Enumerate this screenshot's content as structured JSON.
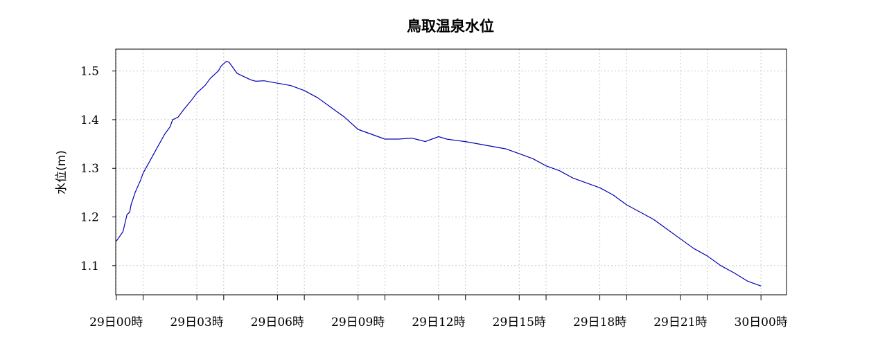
{
  "chart_data": {
    "type": "line",
    "title": "鳥取温泉水位",
    "xlabel": "",
    "ylabel": "水位(m)",
    "ylim": [
      1.04,
      1.545
    ],
    "xlim": [
      -0.02,
      24.95
    ],
    "y_ticks": [
      1.1,
      1.2,
      1.3,
      1.4,
      1.5
    ],
    "y_tick_labels": [
      "1.1",
      "1.2",
      "1.3",
      "1.4",
      "1.5"
    ],
    "x_tick_hours": [
      0,
      3,
      6,
      9,
      12,
      15,
      18,
      21,
      24
    ],
    "x_tick_labels": [
      "29日00時",
      "29日03時",
      "29日06時",
      "29日09時",
      "29日12時",
      "29日15時",
      "29日18時",
      "29日21時",
      "30日00時"
    ],
    "x_minor_tick_hours": [
      1,
      4,
      7,
      10,
      13,
      16,
      19,
      22
    ],
    "grid": true,
    "line_color": "#0000b4",
    "series": [
      {
        "x": [
          0,
          0.25,
          0.4,
          0.5,
          0.55,
          0.7,
          0.9,
          1.0,
          1.2,
          1.5,
          1.8,
          2.0,
          2.1,
          2.3,
          2.5,
          2.8,
          3.0,
          3.3,
          3.5,
          3.7,
          3.8,
          3.9,
          4.0,
          4.1,
          4.2,
          4.5,
          5.0,
          5.2,
          5.5,
          6.0,
          6.5,
          7.0,
          7.5,
          8.0,
          8.5,
          9.0,
          9.5,
          10.0,
          10.5,
          11.0,
          11.3,
          11.5,
          12.0,
          12.3,
          12.7,
          13.0,
          13.5,
          14.0,
          14.5,
          15.0,
          15.5,
          16.0,
          16.5,
          17.0,
          17.5,
          18.0,
          18.5,
          19.0,
          19.5,
          20.0,
          20.5,
          21.0,
          21.5,
          22.0,
          22.5,
          23.0,
          23.5,
          24.0
        ],
        "y": [
          1.15,
          1.17,
          1.205,
          1.21,
          1.225,
          1.25,
          1.275,
          1.29,
          1.31,
          1.34,
          1.37,
          1.385,
          1.4,
          1.405,
          1.42,
          1.44,
          1.455,
          1.47,
          1.485,
          1.495,
          1.5,
          1.51,
          1.515,
          1.52,
          1.518,
          1.495,
          1.482,
          1.479,
          1.48,
          1.475,
          1.47,
          1.46,
          1.445,
          1.425,
          1.405,
          1.38,
          1.37,
          1.36,
          1.36,
          1.362,
          1.358,
          1.355,
          1.365,
          1.36,
          1.357,
          1.355,
          1.35,
          1.345,
          1.34,
          1.33,
          1.32,
          1.305,
          1.295,
          1.28,
          1.27,
          1.26,
          1.245,
          1.225,
          1.21,
          1.195,
          1.175,
          1.155,
          1.135,
          1.12,
          1.1,
          1.085,
          1.068,
          1.058
        ]
      }
    ]
  }
}
